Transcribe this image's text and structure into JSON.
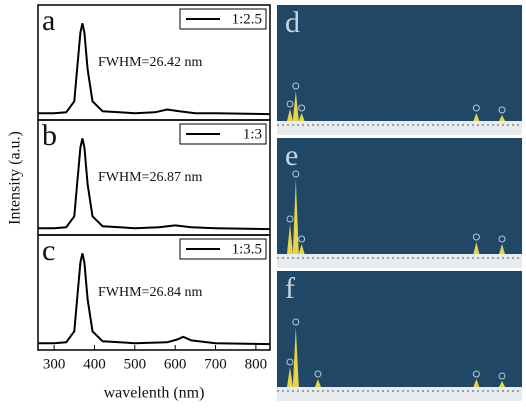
{
  "chart_data": [
    {
      "type": "line",
      "panel_label": "a",
      "annotation": "FWHM=26.42 nm",
      "x": [
        260,
        300,
        330,
        350,
        357,
        365,
        370,
        375,
        383,
        395,
        420,
        500,
        550,
        580,
        610,
        650,
        700,
        835
      ],
      "series": [
        {
          "name": "1:2.5",
          "color": "#000000",
          "values": [
            0.02,
            0.02,
            0.03,
            0.15,
            0.5,
            0.9,
            1,
            0.9,
            0.5,
            0.15,
            0.04,
            0.02,
            0.03,
            0.06,
            0.04,
            0.02,
            0.02,
            0.01
          ]
        }
      ],
      "xlim": [
        260,
        835
      ],
      "ylim": [
        0,
        1.08
      ]
    },
    {
      "type": "line",
      "panel_label": "b",
      "annotation": "FWHM=26.87 nm",
      "ylabel": "Intensity (a.u.)",
      "x": [
        260,
        300,
        330,
        350,
        357,
        365,
        370,
        375,
        383,
        395,
        420,
        500,
        560,
        600,
        640,
        700,
        835
      ],
      "series": [
        {
          "name": "1:3",
          "color": "#000000",
          "values": [
            0.02,
            0.02,
            0.03,
            0.15,
            0.5,
            0.9,
            1,
            0.9,
            0.5,
            0.15,
            0.04,
            0.02,
            0.03,
            0.05,
            0.03,
            0.02,
            0.01
          ]
        }
      ],
      "xlim": [
        260,
        835
      ],
      "ylim": [
        0,
        1.08
      ]
    },
    {
      "type": "line",
      "panel_label": "c",
      "annotation": "FWHM=26.84 nm",
      "xlabel": "wavelenth (nm)",
      "x": [
        260,
        300,
        330,
        350,
        357,
        365,
        370,
        375,
        383,
        395,
        420,
        500,
        580,
        605,
        620,
        640,
        700,
        835
      ],
      "series": [
        {
          "name": "1:3.5",
          "color": "#000000",
          "values": [
            0.02,
            0.02,
            0.03,
            0.15,
            0.5,
            0.9,
            1,
            0.9,
            0.5,
            0.15,
            0.04,
            0.02,
            0.03,
            0.06,
            0.09,
            0.05,
            0.02,
            0.01
          ]
        }
      ],
      "xlim": [
        260,
        835
      ],
      "ylim": [
        0,
        1.08
      ],
      "xticks": [
        300,
        400,
        500,
        600,
        700,
        800
      ]
    },
    {
      "type": "spectrum",
      "panel_label": "d",
      "color": "#e8d44a",
      "x": [
        0.3,
        0.55,
        0.8,
        8.3,
        9.4
      ],
      "values": [
        0.12,
        0.3,
        0.08,
        0.08,
        0.06
      ],
      "xlim": [
        0,
        10
      ],
      "ylim": [
        0,
        1
      ]
    },
    {
      "type": "spectrum",
      "panel_label": "e",
      "color": "#e8d44a",
      "x": [
        0.3,
        0.55,
        0.8,
        8.3,
        9.4
      ],
      "values": [
        0.3,
        0.75,
        0.1,
        0.12,
        0.1
      ],
      "xlim": [
        0,
        10
      ],
      "ylim": [
        0,
        1
      ]
    },
    {
      "type": "spectrum",
      "panel_label": "f",
      "color": "#e8d44a",
      "x": [
        0.3,
        0.55,
        1.5,
        8.3,
        9.4
      ],
      "values": [
        0.2,
        0.6,
        0.08,
        0.08,
        0.06
      ],
      "xlim": [
        0,
        10
      ],
      "ylim": [
        0,
        1
      ]
    }
  ]
}
